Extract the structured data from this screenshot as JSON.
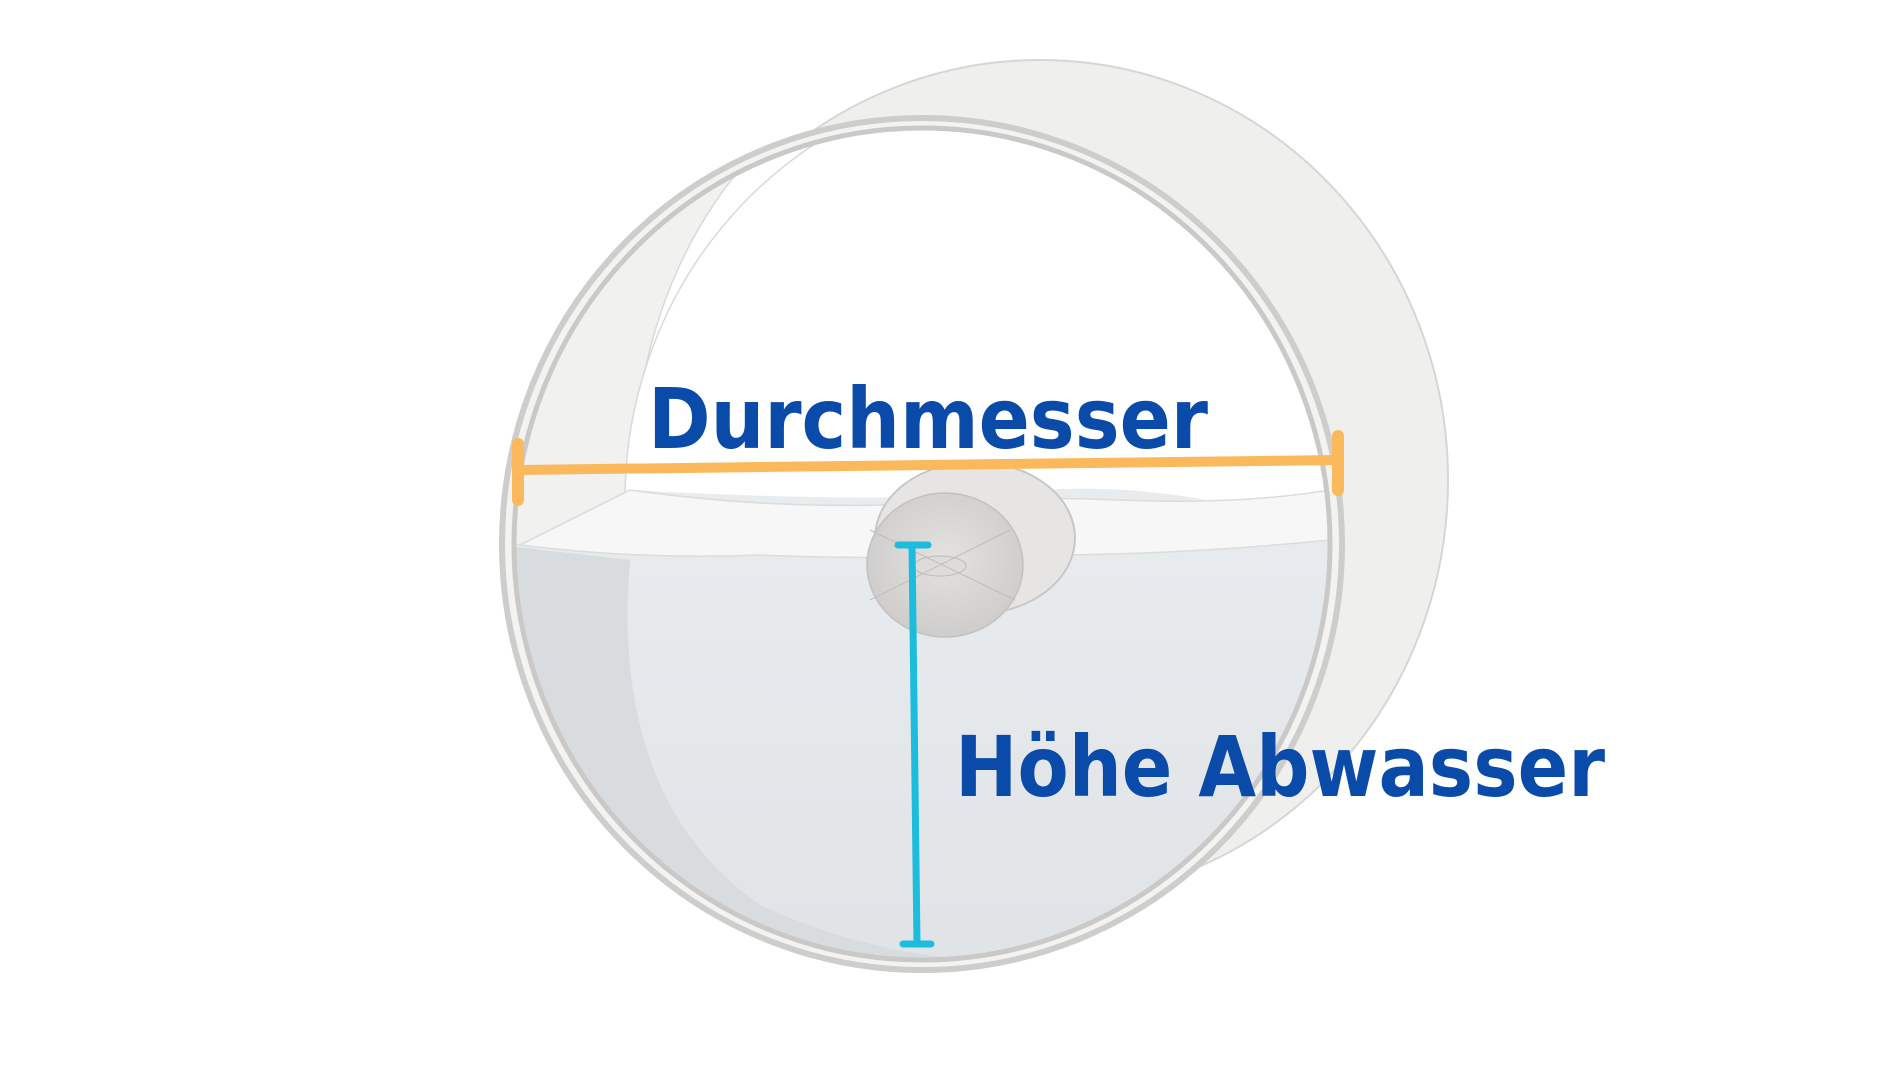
{
  "labels": {
    "diameter": "Durchmesser",
    "wastewater_height": "Höhe Abwasser"
  },
  "colors": {
    "background": "#ffffff",
    "label_text": "#0a4aa8",
    "diameter_line": "#fbb95b",
    "height_line": "#1bbcdc",
    "pipe_rim": "#cfcdcb",
    "pipe_outer_shell": "#eff0ee",
    "pipe_inner_wall": "#f1f2f0",
    "water": "#e5e9ec",
    "water_surface": "#f6f7f6",
    "drain": "#d4d2d1"
  },
  "icons": {
    "pipe": "pipe-cross-section-icon",
    "drain": "drain-opening-icon"
  }
}
